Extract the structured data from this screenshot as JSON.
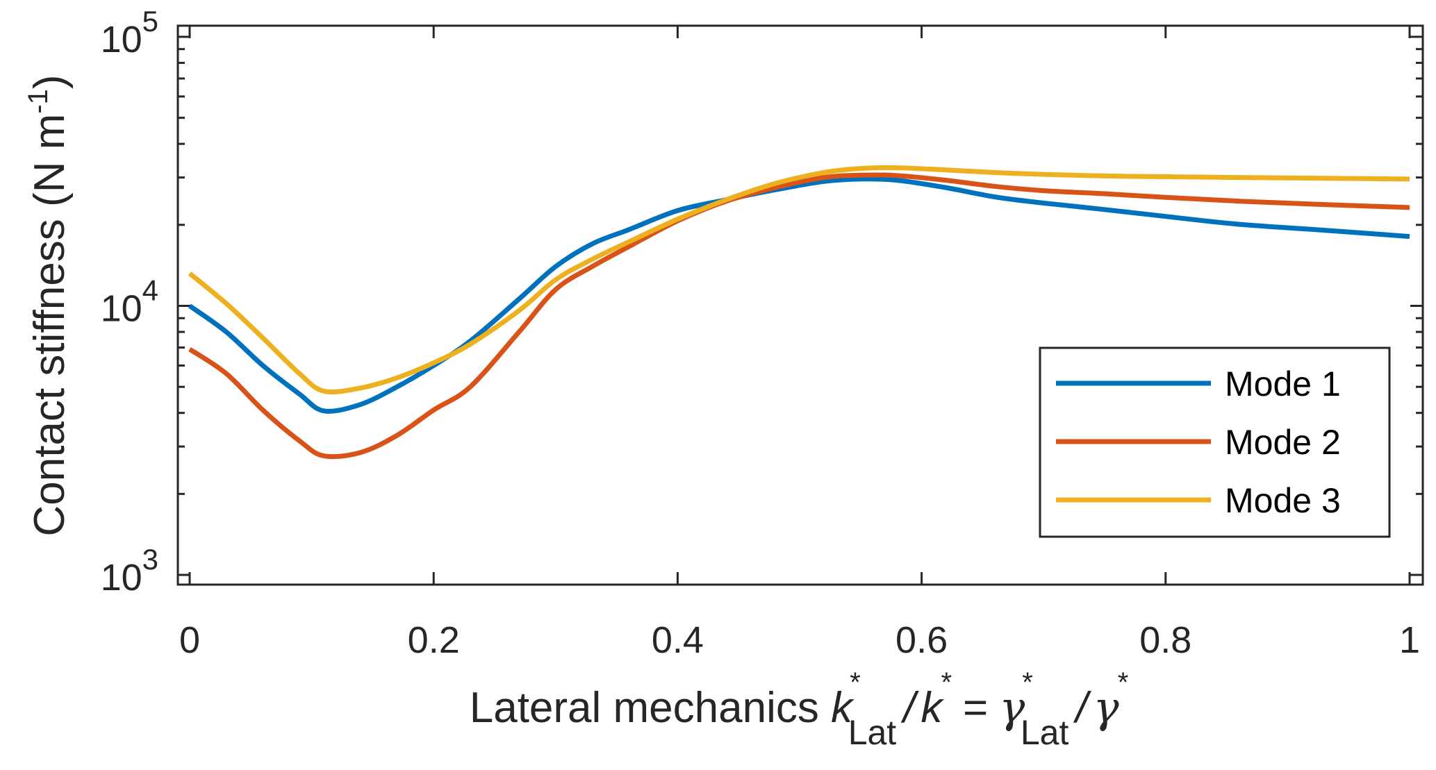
{
  "chart_data": {
    "type": "line",
    "title": "",
    "xlabel": {
      "prefix": "Lateral mechanics ",
      "k_num": "k",
      "k_num_sup": "*",
      "k_num_sub": "Lat",
      "slash1": "/",
      "k_den": "k",
      "k_den_sup": "*",
      "equals": "=",
      "g_num": "γ",
      "g_num_sup": "*",
      "g_num_sub": "Lat",
      "slash2": "/",
      "g_den": "γ",
      "g_den_sup": "*"
    },
    "ylabel": {
      "main": "Contact stiffness (N m",
      "sup": "-1",
      "close": ")"
    },
    "xlim": [
      0,
      1
    ],
    "ylim": [
      1000,
      100000
    ],
    "yscale": "log",
    "grid": false,
    "x_ticks": [
      {
        "value": 0,
        "label": "0"
      },
      {
        "value": 0.2,
        "label": "0.2"
      },
      {
        "value": 0.4,
        "label": "0.4"
      },
      {
        "value": 0.6,
        "label": "0.6"
      },
      {
        "value": 0.8,
        "label": "0.8"
      },
      {
        "value": 1,
        "label": "1"
      }
    ],
    "y_ticks": [
      {
        "value": 1000,
        "base": "10",
        "exp": "3"
      },
      {
        "value": 10000,
        "base": "10",
        "exp": "4"
      },
      {
        "value": 100000,
        "base": "10",
        "exp": "5"
      }
    ],
    "legend": {
      "position": "bottom-right"
    },
    "x": [
      0,
      0.03,
      0.06,
      0.09,
      0.11,
      0.14,
      0.17,
      0.2,
      0.23,
      0.27,
      0.3,
      0.33,
      0.36,
      0.4,
      0.44,
      0.48,
      0.52,
      0.55,
      0.58,
      0.62,
      0.66,
      0.7,
      0.75,
      0.8,
      0.86,
      0.93,
      1.0
    ],
    "series": [
      {
        "name": "Mode 1",
        "color": "#0072BD",
        "values": [
          10000,
          8000,
          6000,
          4700,
          4070,
          4300,
          5000,
          6000,
          7400,
          10600,
          14000,
          17000,
          19200,
          22600,
          24800,
          27000,
          29000,
          29600,
          29300,
          27500,
          25400,
          24100,
          22800,
          21500,
          20100,
          19100,
          18100
        ]
      },
      {
        "name": "Mode 2",
        "color": "#D95319",
        "values": [
          6900,
          5600,
          4100,
          3150,
          2770,
          2850,
          3300,
          4100,
          5000,
          8000,
          11500,
          14000,
          16600,
          20700,
          24500,
          27500,
          30000,
          30600,
          30500,
          29300,
          27800,
          26800,
          26100,
          25300,
          24500,
          23800,
          23200
        ]
      },
      {
        "name": "Mode 3",
        "color": "#EDB120",
        "values": [
          13200,
          10200,
          7600,
          5600,
          4820,
          4950,
          5400,
          6140,
          7200,
          9600,
          12500,
          14900,
          17300,
          21000,
          24800,
          28500,
          31300,
          32400,
          32600,
          32000,
          31300,
          30800,
          30400,
          30200,
          30000,
          29800,
          29600
        ]
      }
    ]
  }
}
